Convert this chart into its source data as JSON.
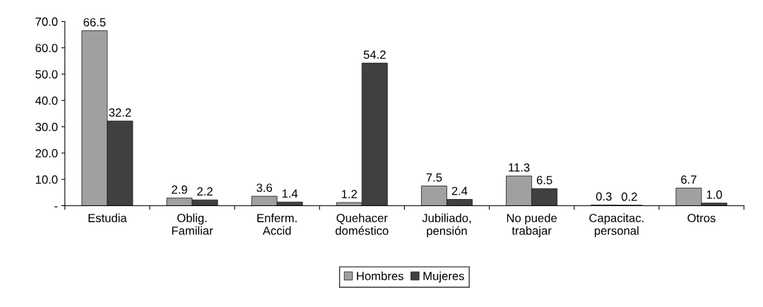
{
  "chart_data": {
    "type": "bar",
    "categories": [
      "Estudia",
      "Oblig.\nFamiliar",
      "Enferm.\nAccid",
      "Quehacer\ndoméstico",
      "Jubiliado,\npensión",
      "No puede\ntrabajar",
      "Capacitac.\npersonal",
      "Otros"
    ],
    "series": [
      {
        "name": "Hombres",
        "color": "#a0a0a0",
        "values": [
          66.5,
          2.9,
          3.6,
          1.2,
          7.5,
          11.3,
          0.3,
          6.7
        ],
        "value_labels": [
          "66.5",
          "2.9",
          "3.6",
          "1.2",
          "7.5",
          "11.3",
          "0.3",
          "6.7"
        ]
      },
      {
        "name": "Mujeres",
        "color": "#404040",
        "values": [
          32.2,
          2.2,
          1.4,
          54.2,
          2.4,
          6.5,
          0.2,
          1.0
        ],
        "value_labels": [
          "32.2",
          "2.2",
          "1.4",
          "54.2",
          "2.4",
          "6.5",
          "0.2",
          "1.0"
        ]
      }
    ],
    "ylim": [
      0,
      70
    ],
    "yticks": [
      {
        "value": 0,
        "label": "-"
      },
      {
        "value": 10,
        "label": "10.0"
      },
      {
        "value": 20,
        "label": "20.0"
      },
      {
        "value": 30,
        "label": "30.0"
      },
      {
        "value": 40,
        "label": "40.0"
      },
      {
        "value": 50,
        "label": "50.0"
      },
      {
        "value": 60,
        "label": "60.0"
      },
      {
        "value": 70,
        "label": "70.0"
      }
    ],
    "grid": false,
    "legend": "bottom"
  }
}
